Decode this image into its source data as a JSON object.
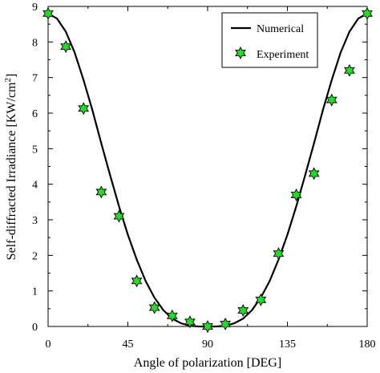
{
  "chart_data": {
    "type": "line",
    "xlabel": "Angle of polarization [DEG]",
    "ylabel": "Self-diffracted Irradiance [KW/cm",
    "ylabel_sup": "2",
    "ylabel_end": "]",
    "xlim": [
      0,
      180
    ],
    "ylim": [
      0,
      9
    ],
    "xticks": [
      "0",
      "45",
      "90",
      "135",
      "180"
    ],
    "yticks": [
      "0",
      "1",
      "2",
      "3",
      "4",
      "5",
      "6",
      "7",
      "8",
      "9"
    ],
    "grid": false,
    "legend_position": "top-right",
    "series": [
      {
        "name": "Numerical",
        "kind": "line",
        "color": "#000000",
        "x": [
          0,
          5,
          10,
          15,
          20,
          25,
          30,
          35,
          40,
          45,
          50,
          55,
          60,
          65,
          70,
          75,
          80,
          85,
          90,
          95,
          100,
          105,
          110,
          115,
          120,
          125,
          130,
          135,
          140,
          145,
          150,
          155,
          160,
          165,
          170,
          175,
          180
        ],
        "y": [
          8.8,
          8.66,
          8.29,
          7.7,
          6.93,
          6.08,
          5.15,
          4.25,
          3.38,
          2.58,
          1.88,
          1.28,
          0.81,
          0.46,
          0.22,
          0.09,
          0.02,
          0.0,
          0.0,
          0.0,
          0.02,
          0.09,
          0.22,
          0.46,
          0.81,
          1.28,
          1.88,
          2.58,
          3.38,
          4.25,
          5.15,
          6.08,
          6.93,
          7.7,
          8.29,
          8.66,
          8.8
        ]
      },
      {
        "name": "Experiment",
        "kind": "scatter",
        "color": "#22dd22",
        "x": [
          0,
          10,
          20,
          30,
          40,
          50,
          60,
          70,
          80,
          90,
          100,
          110,
          120,
          130,
          140,
          150,
          160,
          170,
          180
        ],
        "y": [
          8.8,
          7.87,
          6.13,
          3.78,
          3.1,
          1.28,
          0.53,
          0.3,
          0.13,
          0.0,
          0.07,
          0.45,
          0.75,
          2.05,
          3.7,
          4.3,
          6.37,
          7.2,
          8.8
        ]
      }
    ]
  }
}
